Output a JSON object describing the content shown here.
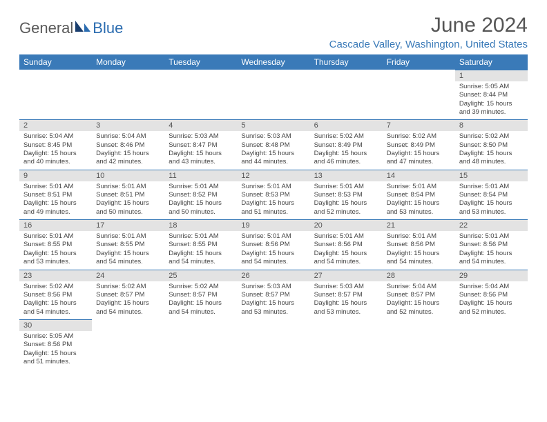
{
  "logo": {
    "part1": "General",
    "part2": "Blue"
  },
  "title": "June 2024",
  "location": "Cascade Valley, Washington, United States",
  "colors": {
    "header_bg": "#3a7ab8",
    "header_text": "#ffffff",
    "daynum_bg": "#e3e3e3",
    "cell_border": "#3a7ab8",
    "page_bg": "#ffffff",
    "text": "#444444",
    "title_color": "#555555",
    "location_color": "#3a7ab8"
  },
  "weekdays": [
    "Sunday",
    "Monday",
    "Tuesday",
    "Wednesday",
    "Thursday",
    "Friday",
    "Saturday"
  ],
  "grid": [
    [
      null,
      null,
      null,
      null,
      null,
      null,
      {
        "n": "1",
        "sr": "5:05 AM",
        "ss": "8:44 PM",
        "dl": "15 hours and 39 minutes."
      }
    ],
    [
      {
        "n": "2",
        "sr": "5:04 AM",
        "ss": "8:45 PM",
        "dl": "15 hours and 40 minutes."
      },
      {
        "n": "3",
        "sr": "5:04 AM",
        "ss": "8:46 PM",
        "dl": "15 hours and 42 minutes."
      },
      {
        "n": "4",
        "sr": "5:03 AM",
        "ss": "8:47 PM",
        "dl": "15 hours and 43 minutes."
      },
      {
        "n": "5",
        "sr": "5:03 AM",
        "ss": "8:48 PM",
        "dl": "15 hours and 44 minutes."
      },
      {
        "n": "6",
        "sr": "5:02 AM",
        "ss": "8:49 PM",
        "dl": "15 hours and 46 minutes."
      },
      {
        "n": "7",
        "sr": "5:02 AM",
        "ss": "8:49 PM",
        "dl": "15 hours and 47 minutes."
      },
      {
        "n": "8",
        "sr": "5:02 AM",
        "ss": "8:50 PM",
        "dl": "15 hours and 48 minutes."
      }
    ],
    [
      {
        "n": "9",
        "sr": "5:01 AM",
        "ss": "8:51 PM",
        "dl": "15 hours and 49 minutes."
      },
      {
        "n": "10",
        "sr": "5:01 AM",
        "ss": "8:51 PM",
        "dl": "15 hours and 50 minutes."
      },
      {
        "n": "11",
        "sr": "5:01 AM",
        "ss": "8:52 PM",
        "dl": "15 hours and 50 minutes."
      },
      {
        "n": "12",
        "sr": "5:01 AM",
        "ss": "8:53 PM",
        "dl": "15 hours and 51 minutes."
      },
      {
        "n": "13",
        "sr": "5:01 AM",
        "ss": "8:53 PM",
        "dl": "15 hours and 52 minutes."
      },
      {
        "n": "14",
        "sr": "5:01 AM",
        "ss": "8:54 PM",
        "dl": "15 hours and 53 minutes."
      },
      {
        "n": "15",
        "sr": "5:01 AM",
        "ss": "8:54 PM",
        "dl": "15 hours and 53 minutes."
      }
    ],
    [
      {
        "n": "16",
        "sr": "5:01 AM",
        "ss": "8:55 PM",
        "dl": "15 hours and 53 minutes."
      },
      {
        "n": "17",
        "sr": "5:01 AM",
        "ss": "8:55 PM",
        "dl": "15 hours and 54 minutes."
      },
      {
        "n": "18",
        "sr": "5:01 AM",
        "ss": "8:55 PM",
        "dl": "15 hours and 54 minutes."
      },
      {
        "n": "19",
        "sr": "5:01 AM",
        "ss": "8:56 PM",
        "dl": "15 hours and 54 minutes."
      },
      {
        "n": "20",
        "sr": "5:01 AM",
        "ss": "8:56 PM",
        "dl": "15 hours and 54 minutes."
      },
      {
        "n": "21",
        "sr": "5:01 AM",
        "ss": "8:56 PM",
        "dl": "15 hours and 54 minutes."
      },
      {
        "n": "22",
        "sr": "5:01 AM",
        "ss": "8:56 PM",
        "dl": "15 hours and 54 minutes."
      }
    ],
    [
      {
        "n": "23",
        "sr": "5:02 AM",
        "ss": "8:56 PM",
        "dl": "15 hours and 54 minutes."
      },
      {
        "n": "24",
        "sr": "5:02 AM",
        "ss": "8:57 PM",
        "dl": "15 hours and 54 minutes."
      },
      {
        "n": "25",
        "sr": "5:02 AM",
        "ss": "8:57 PM",
        "dl": "15 hours and 54 minutes."
      },
      {
        "n": "26",
        "sr": "5:03 AM",
        "ss": "8:57 PM",
        "dl": "15 hours and 53 minutes."
      },
      {
        "n": "27",
        "sr": "5:03 AM",
        "ss": "8:57 PM",
        "dl": "15 hours and 53 minutes."
      },
      {
        "n": "28",
        "sr": "5:04 AM",
        "ss": "8:57 PM",
        "dl": "15 hours and 52 minutes."
      },
      {
        "n": "29",
        "sr": "5:04 AM",
        "ss": "8:56 PM",
        "dl": "15 hours and 52 minutes."
      }
    ],
    [
      {
        "n": "30",
        "sr": "5:05 AM",
        "ss": "8:56 PM",
        "dl": "15 hours and 51 minutes."
      },
      null,
      null,
      null,
      null,
      null,
      null
    ]
  ],
  "labels": {
    "sunrise": "Sunrise:",
    "sunset": "Sunset:",
    "daylight": "Daylight:"
  }
}
